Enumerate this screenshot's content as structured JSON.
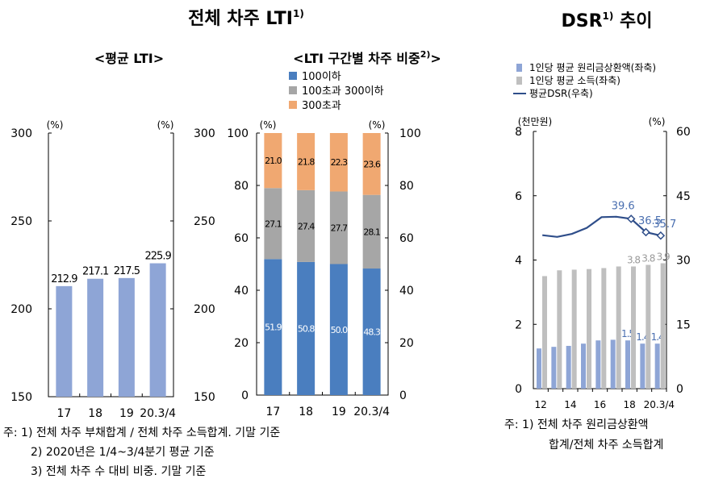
{
  "main_title": "전체 차주 LTI",
  "main_title_sup": "1)",
  "dsr_title": "DSR",
  "dsr_title_sup": "1)",
  "dsr_title_rest": "추이",
  "colors": {
    "lti_bar": "#8ea5d6",
    "blue": "#4a7ebf",
    "gray": "#a6a6a6",
    "orange": "#f0a871",
    "dsr_blue": "#8ea5d6",
    "dsr_gray": "#bfbfbf",
    "dsr_line": "#2f4e8a"
  },
  "chart_data": [
    {
      "type": "bar",
      "title": "<평균 LTI>",
      "unit_left": "(%)",
      "unit_right": "(%)",
      "categories": [
        "17",
        "18",
        "19",
        "20.3/4"
      ],
      "values": [
        212.9,
        217.1,
        217.5,
        225.9
      ],
      "ylim": [
        150,
        300
      ],
      "yticks": [
        "150",
        "200",
        "250",
        "300"
      ],
      "grid": false
    },
    {
      "type": "stacked-bar",
      "title": "<LTI 구간별 차주 비중",
      "title_sup": "2)",
      "title_end": ">",
      "unit_left": "(%)",
      "unit_right": "(%)",
      "categories": [
        "17",
        "18",
        "19",
        "20.3/4"
      ],
      "series": [
        {
          "name": "100이하",
          "values": [
            51.9,
            50.8,
            50.0,
            48.3
          ]
        },
        {
          "name": "100초과 300이하",
          "values": [
            27.1,
            27.4,
            27.7,
            28.1
          ]
        },
        {
          "name": "300초과",
          "values": [
            21.0,
            21.8,
            22.3,
            23.6
          ]
        }
      ],
      "ylim": [
        0,
        100
      ],
      "yticks": [
        "0",
        "20",
        "40",
        "60",
        "80",
        "100"
      ],
      "legend": "top",
      "grid": false
    },
    {
      "type": "bar+line",
      "unit_left": "(천만원)",
      "unit_right": "(%)",
      "categories": [
        "12",
        "13",
        "14",
        "15",
        "16",
        "17",
        "18",
        "19",
        "20.3/4"
      ],
      "xticks": [
        "12",
        "14",
        "16",
        "18",
        "20.3/4"
      ],
      "series": [
        {
          "name": "1인당 평균 원리금상환액(좌축)",
          "axis": "left",
          "values": [
            1.25,
            1.3,
            1.33,
            1.4,
            1.5,
            1.52,
            1.5,
            1.4,
            1.4
          ],
          "labels": [
            "",
            "",
            "",
            "",
            "",
            "",
            "1.5",
            "1.4",
            "1.4"
          ]
        },
        {
          "name": "1인당 평균 소득(좌축)",
          "axis": "left",
          "values": [
            3.5,
            3.68,
            3.7,
            3.72,
            3.75,
            3.8,
            3.8,
            3.85,
            3.9
          ],
          "labels": [
            "",
            "",
            "",
            "",
            "",
            "",
            "3.8",
            "3.8",
            "3.9"
          ]
        },
        {
          "name": "평균DSR(우축)",
          "axis": "right",
          "values": [
            35.8,
            35.4,
            36.1,
            37.5,
            40.0,
            40.1,
            39.6,
            36.5,
            35.7
          ],
          "labels": [
            "",
            "",
            "",
            "",
            "",
            "",
            "39.6",
            "36.5",
            "35.7"
          ]
        }
      ],
      "ylim_left": [
        0,
        8
      ],
      "yticks_left": [
        "0",
        "2",
        "4",
        "6",
        "8"
      ],
      "ylim_right": [
        0,
        60
      ],
      "yticks_right": [
        "0",
        "15",
        "30",
        "45",
        "60"
      ],
      "legend": "top"
    }
  ],
  "notes": [
    "주: 1) 전체 차주 부채합계 / 전체 차주 소득합계. 기말 기준",
    "2) 2020년은 1/4~3/4분기 평균 기준",
    "3) 전체 차주 수 대비 비중. 기말 기준"
  ],
  "dsr_notes": [
    "주: 1) 전체   차주   원리금상환액",
    "합계/전체 차주 소득합계"
  ]
}
